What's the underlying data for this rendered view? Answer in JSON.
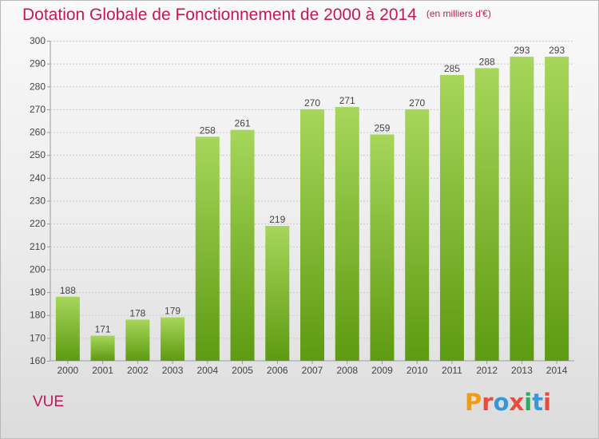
{
  "header": {
    "title": "Dotation Globale de Fonctionnement de 2000 à 2014",
    "subtitle": "(en milliers d'€)"
  },
  "footer": {
    "commune": "VUE",
    "logo_text": "Proxiti",
    "logo_colors": [
      "#f39c12",
      "#e74c3c",
      "#3498db",
      "#e74c3c",
      "#27ae60",
      "#3498db",
      "#e74c3c"
    ]
  },
  "chart_data": {
    "type": "bar",
    "categories": [
      "2000",
      "2001",
      "2002",
      "2003",
      "2004",
      "2005",
      "2006",
      "2007",
      "2008",
      "2009",
      "2010",
      "2011",
      "2012",
      "2013",
      "2014"
    ],
    "values": [
      188,
      171,
      178,
      179,
      258,
      261,
      219,
      270,
      271,
      259,
      270,
      285,
      288,
      293,
      293
    ],
    "title": "Dotation Globale de Fonctionnement de 2000 à 2014",
    "subtitle": "(en milliers d'€)",
    "xlabel": "",
    "ylabel": "",
    "ylim": [
      160,
      300
    ],
    "yticks": [
      160,
      170,
      180,
      190,
      200,
      210,
      220,
      230,
      240,
      250,
      260,
      270,
      280,
      290,
      300
    ],
    "grid": true,
    "bar_color_top": "#a6d65a",
    "bar_color_bottom": "#5e9a12",
    "text_color": "#c2185b"
  }
}
